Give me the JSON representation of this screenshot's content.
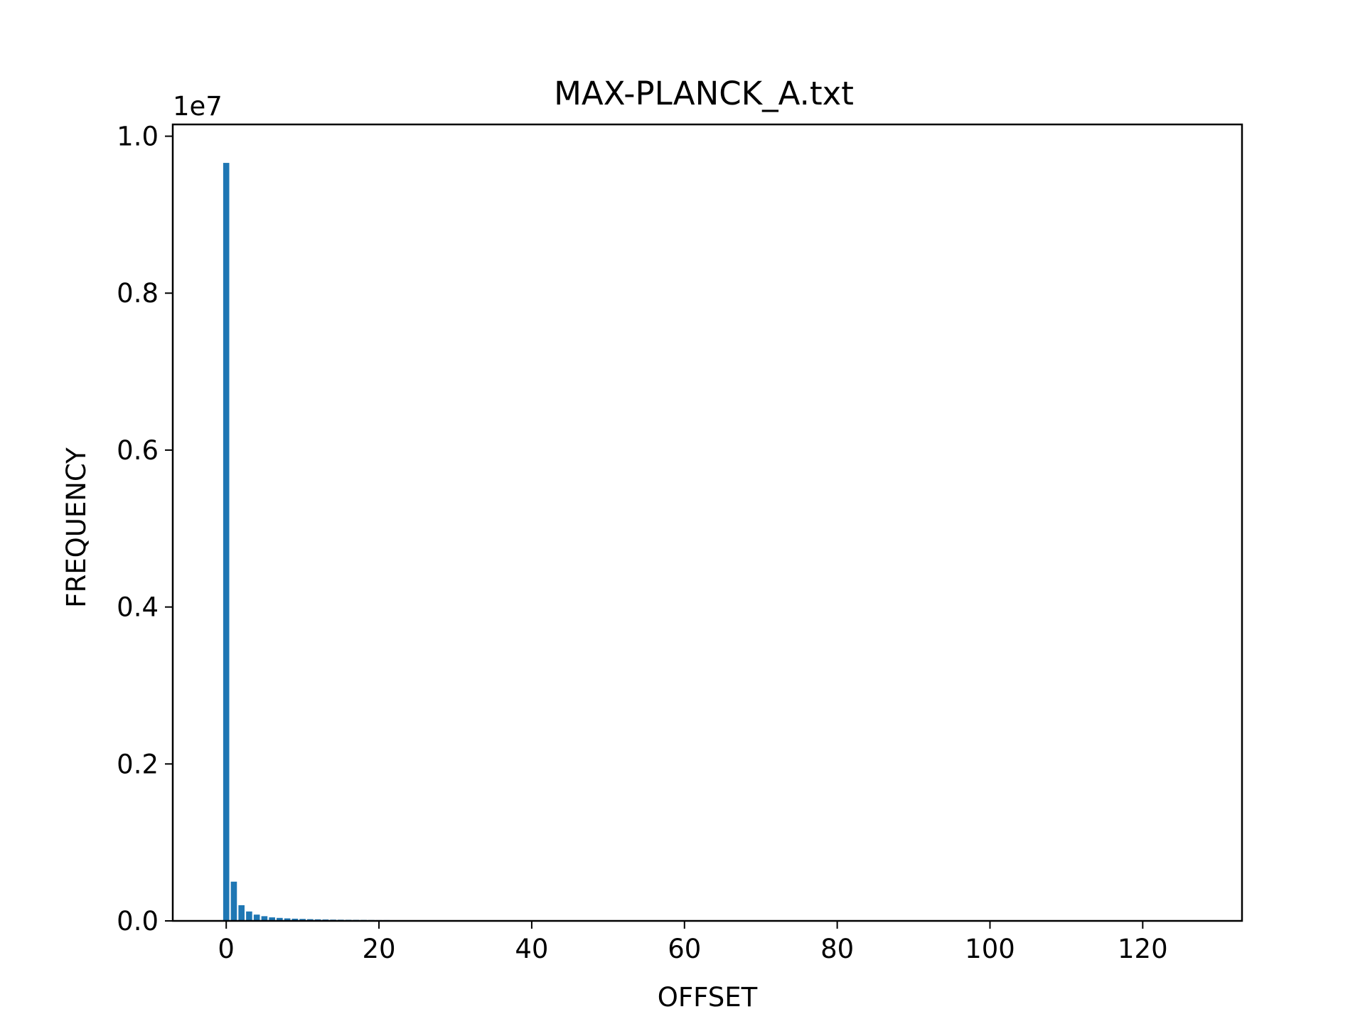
{
  "chart_data": {
    "type": "bar",
    "title": "MAX-PLANCK_A.txt",
    "xlabel": "OFFSET",
    "ylabel": "FREQUENCY",
    "y_offset_text": "1e7",
    "xlim": [
      -7,
      133
    ],
    "ylim": [
      0,
      1.015
    ],
    "y_scale_note": "values in units of 1e7",
    "x_ticks": [
      0,
      20,
      40,
      60,
      80,
      100,
      120
    ],
    "x_tick_labels": [
      "0",
      "20",
      "40",
      "60",
      "80",
      "100",
      "120"
    ],
    "y_ticks": [
      0.0,
      0.2,
      0.4,
      0.6,
      0.8,
      1.0
    ],
    "y_tick_labels": [
      "0.0",
      "0.2",
      "0.4",
      "0.6",
      "0.8",
      "1.0"
    ],
    "grid": false,
    "series": [
      {
        "color": "#1f77b4",
        "x": [
          0,
          1,
          2,
          3,
          4,
          5,
          6,
          7,
          8,
          9,
          10,
          11,
          12,
          13,
          14,
          15,
          16,
          17,
          18,
          19,
          20,
          21,
          22,
          23,
          24,
          25,
          26,
          27,
          28,
          29,
          30,
          31,
          32,
          33,
          34,
          35,
          36,
          37,
          38,
          39,
          40,
          41,
          42,
          43,
          44
        ],
        "values": [
          0.966,
          0.05,
          0.02,
          0.012,
          0.008,
          0.006,
          0.0045,
          0.0038,
          0.0032,
          0.0028,
          0.0025,
          0.0022,
          0.002,
          0.0018,
          0.0016,
          0.0015,
          0.0014,
          0.0013,
          0.0012,
          0.0011,
          0.001,
          0.001,
          0.0009,
          0.0009,
          0.0008,
          0.0008,
          0.0008,
          0.0007,
          0.0007,
          0.0007,
          0.0006,
          0.0006,
          0.0006,
          0.0006,
          0.0005,
          0.0005,
          0.0005,
          0.0005,
          0.0005,
          0.0004,
          0.0004,
          0.0004,
          0.0004,
          0.0004,
          0.0003
        ]
      }
    ]
  }
}
